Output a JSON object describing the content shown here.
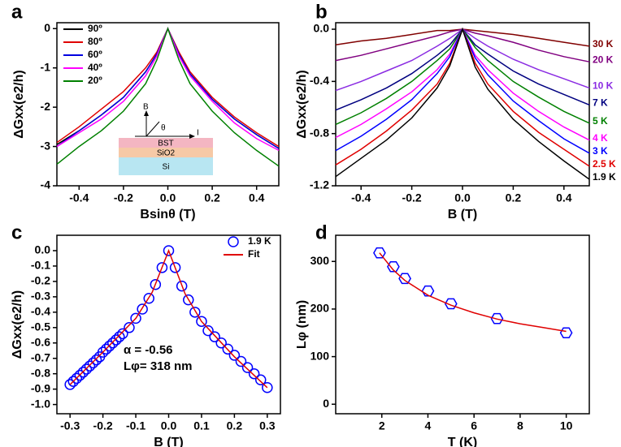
{
  "chart_data": [
    {
      "type": "line",
      "panel": "a",
      "x_label": "Bsinθ (T)",
      "y_label": "ΔGxx(e2/h)",
      "xlim": [
        -0.5,
        0.5
      ],
      "ylim": [
        -4,
        0.15
      ],
      "xticks": [
        -0.4,
        -0.2,
        {
          "value": 0,
          "label": "0.0"
        },
        0.2,
        0.4
      ],
      "yticks": [
        0,
        -1,
        -2,
        -3,
        -4
      ],
      "legend": "upper left",
      "x": [
        -0.5,
        -0.4,
        -0.3,
        -0.2,
        -0.1,
        -0.05,
        0,
        0.05,
        0.1,
        0.2,
        0.3,
        0.4,
        0.5
      ],
      "series": [
        {
          "name": "90º",
          "color": "#000000",
          "values": [
            -2.95,
            -2.6,
            -2.2,
            -1.75,
            -1.1,
            -0.65,
            0,
            -0.65,
            -1.15,
            -1.8,
            -2.3,
            -2.7,
            -3.05
          ]
        },
        {
          "name": "80º",
          "color": "#e00000",
          "values": [
            -2.9,
            -2.5,
            -2.05,
            -1.6,
            -1.0,
            -0.6,
            0,
            -0.6,
            -1.1,
            -1.75,
            -2.25,
            -2.65,
            -3.0
          ]
        },
        {
          "name": "60º",
          "color": "#0000e0",
          "values": [
            -3.0,
            -2.6,
            -2.2,
            -1.75,
            -1.1,
            -0.65,
            0,
            -0.65,
            -1.15,
            -1.8,
            -2.3,
            -2.7,
            -3.05
          ]
        },
        {
          "name": "40º",
          "color": "#ff00ff",
          "values": [
            -3.0,
            -2.65,
            -2.3,
            -1.85,
            -1.2,
            -0.7,
            0,
            -0.7,
            -1.2,
            -1.85,
            -2.4,
            -2.8,
            -3.1
          ]
        },
        {
          "name": "20º",
          "color": "#008000",
          "values": [
            -3.45,
            -3.0,
            -2.6,
            -2.1,
            -1.4,
            -0.8,
            0,
            -0.8,
            -1.4,
            -2.1,
            -2.65,
            -3.1,
            -3.5
          ]
        }
      ],
      "inset": {
        "b": "B",
        "theta": "θ",
        "i": "I",
        "bst": "BST",
        "sio2": "SiO2",
        "si": "Si"
      }
    },
    {
      "type": "line",
      "panel": "b",
      "x_label": "B (T)",
      "y_label": "ΔGxx(e2/h)",
      "xlim": [
        -0.5,
        0.5
      ],
      "ylim": [
        -1.2,
        0.05
      ],
      "xticks": [
        -0.4,
        -0.2,
        {
          "value": 0,
          "label": "0.0"
        },
        0.2,
        0.4
      ],
      "yticks": [
        {
          "value": 0,
          "label": "0.0"
        },
        -0.4,
        -0.8,
        -1.2
      ],
      "legend": "right",
      "x": [
        -0.5,
        -0.4,
        -0.3,
        -0.2,
        -0.1,
        -0.05,
        0,
        0.05,
        0.1,
        0.2,
        0.3,
        0.4,
        0.5
      ],
      "series": [
        {
          "name": "30 K",
          "color": "#800000",
          "values": [
            -0.12,
            -0.09,
            -0.07,
            -0.04,
            -0.01,
            -0.01,
            0,
            -0.01,
            -0.02,
            -0.04,
            -0.07,
            -0.1,
            -0.13
          ]
        },
        {
          "name": "20 K",
          "color": "#800080",
          "values": [
            -0.24,
            -0.2,
            -0.15,
            -0.1,
            -0.05,
            -0.02,
            0,
            -0.03,
            -0.05,
            -0.1,
            -0.16,
            -0.21,
            -0.25
          ]
        },
        {
          "name": "10 K",
          "color": "#8a2be2",
          "values": [
            -0.47,
            -0.4,
            -0.32,
            -0.24,
            -0.13,
            -0.07,
            0,
            -0.07,
            -0.13,
            -0.23,
            -0.31,
            -0.38,
            -0.45
          ]
        },
        {
          "name": "7 K",
          "color": "#000080",
          "values": [
            -0.62,
            -0.54,
            -0.45,
            -0.34,
            -0.2,
            -0.12,
            0,
            -0.12,
            -0.19,
            -0.32,
            -0.42,
            -0.5,
            -0.58
          ]
        },
        {
          "name": "5 K",
          "color": "#008000",
          "values": [
            -0.73,
            -0.64,
            -0.53,
            -0.4,
            -0.24,
            -0.15,
            0,
            -0.14,
            -0.24,
            -0.4,
            -0.52,
            -0.63,
            -0.72
          ]
        },
        {
          "name": "4 K",
          "color": "#ff00ff",
          "values": [
            -0.83,
            -0.73,
            -0.61,
            -0.48,
            -0.31,
            -0.19,
            0,
            -0.2,
            -0.31,
            -0.49,
            -0.63,
            -0.75,
            -0.85
          ]
        },
        {
          "name": "3 K",
          "color": "#0000ff",
          "values": [
            -0.93,
            -0.82,
            -0.69,
            -0.54,
            -0.34,
            -0.21,
            0,
            -0.22,
            -0.35,
            -0.55,
            -0.7,
            -0.84,
            -0.95
          ]
        },
        {
          "name": "2.5 K",
          "color": "#e00000",
          "values": [
            -1.04,
            -0.92,
            -0.78,
            -0.62,
            -0.42,
            -0.26,
            0,
            -0.26,
            -0.42,
            -0.63,
            -0.79,
            -0.92,
            -1.05
          ]
        },
        {
          "name": "1.9 K",
          "color": "#000000",
          "values": [
            -1.13,
            -0.99,
            -0.85,
            -0.68,
            -0.45,
            -0.28,
            0,
            -0.29,
            -0.46,
            -0.69,
            -0.86,
            -1.01,
            -1.15
          ]
        }
      ]
    },
    {
      "type": "scatter",
      "panel": "c",
      "x_label": "B (T)",
      "y_label": "ΔGxx(e2/h)",
      "xlim": [
        -0.34,
        0.34
      ],
      "ylim": [
        -1.06,
        0.1
      ],
      "xticks": [
        -0.3,
        -0.2,
        -0.1,
        {
          "value": 0,
          "label": "0.0"
        },
        0.1,
        0.2,
        0.3
      ],
      "yticks": [
        {
          "value": 0,
          "label": "0.0"
        },
        -0.1,
        -0.2,
        -0.3,
        -0.4,
        -0.5,
        -0.6,
        -0.7,
        -0.8,
        -0.9,
        {
          "value": -1,
          "label": "-1.0"
        }
      ],
      "legend": "upper right",
      "annotations": [
        "α = -0.56",
        "Lφ= 318 nm"
      ],
      "series": [
        {
          "name": "1.9 K",
          "color": "#0000ff",
          "marker": "circle",
          "x": [
            -0.3,
            -0.29,
            -0.28,
            -0.27,
            -0.26,
            -0.25,
            -0.24,
            -0.23,
            -0.22,
            -0.21,
            -0.2,
            -0.19,
            -0.18,
            -0.17,
            -0.16,
            -0.15,
            -0.14,
            -0.12,
            -0.1,
            -0.08,
            -0.06,
            -0.04,
            -0.02,
            0,
            0.02,
            0.04,
            0.06,
            0.08,
            0.1,
            0.12,
            0.14,
            0.16,
            0.18,
            0.2,
            0.22,
            0.24,
            0.26,
            0.28,
            0.3
          ],
          "values": [
            -0.87,
            -0.85,
            -0.83,
            -0.81,
            -0.79,
            -0.77,
            -0.75,
            -0.73,
            -0.71,
            -0.69,
            -0.66,
            -0.64,
            -0.62,
            -0.6,
            -0.58,
            -0.56,
            -0.54,
            -0.5,
            -0.44,
            -0.38,
            -0.31,
            -0.22,
            -0.11,
            0,
            -0.11,
            -0.23,
            -0.32,
            -0.4,
            -0.46,
            -0.52,
            -0.56,
            -0.6,
            -0.64,
            -0.68,
            -0.72,
            -0.76,
            -0.8,
            -0.84,
            -0.89
          ]
        },
        {
          "name": "Fit",
          "color": "#e00000",
          "x": [
            -0.3,
            -0.2,
            -0.1,
            -0.05,
            0,
            0.05,
            0.1,
            0.2,
            0.3
          ],
          "values": [
            -0.87,
            -0.66,
            -0.44,
            -0.27,
            0,
            -0.28,
            -0.46,
            -0.69,
            -0.89
          ]
        }
      ]
    },
    {
      "type": "scatter",
      "panel": "d",
      "x_label": "T (K)",
      "y_label": "Lφ (nm)",
      "xlim": [
        0,
        11
      ],
      "ylim": [
        -20,
        355
      ],
      "xticks": [
        2,
        4,
        6,
        8,
        10
      ],
      "yticks": [
        0,
        100,
        200,
        300
      ],
      "series": [
        {
          "color": "#0000ff",
          "marker": "hexagon",
          "x": [
            1.9,
            2.5,
            3,
            4,
            5,
            7,
            10
          ],
          "values": [
            318,
            289,
            264,
            238,
            211,
            180,
            150
          ]
        },
        {
          "color": "#e00000",
          "x": [
            1.9,
            2.5,
            3,
            4,
            5,
            6,
            7,
            8,
            9,
            10
          ],
          "values": [
            318,
            282,
            260,
            229,
            208,
            192,
            179,
            169,
            161,
            153
          ]
        }
      ]
    }
  ]
}
